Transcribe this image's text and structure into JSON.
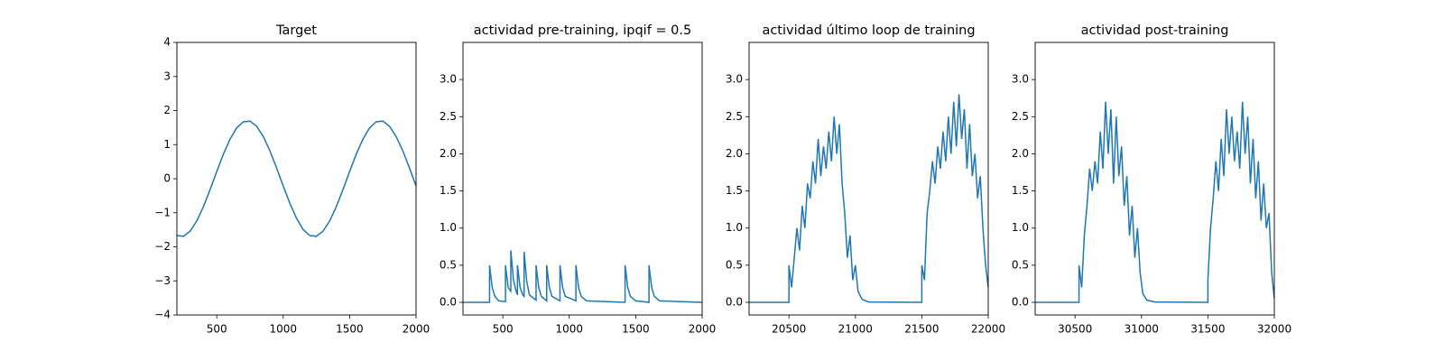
{
  "chart_data": [
    {
      "type": "line",
      "title": "Target",
      "color": "#1f77b4",
      "x": [
        200,
        250,
        300,
        350,
        400,
        450,
        500,
        550,
        600,
        650,
        700,
        750,
        800,
        850,
        900,
        950,
        1000,
        1050,
        1100,
        1150,
        1200,
        1250,
        1300,
        1350,
        1400,
        1450,
        1500,
        1550,
        1600,
        1650,
        1700,
        1750,
        1800,
        1850,
        1900,
        1950,
        2000
      ],
      "values": [
        -1.67,
        -1.69,
        -1.54,
        -1.24,
        -0.82,
        -0.32,
        0.21,
        0.72,
        1.16,
        1.49,
        1.67,
        1.69,
        1.54,
        1.24,
        0.82,
        0.32,
        -0.21,
        -0.72,
        -1.16,
        -1.49,
        -1.67,
        -1.69,
        -1.54,
        -1.24,
        -0.82,
        -0.32,
        0.21,
        0.72,
        1.16,
        1.49,
        1.67,
        1.69,
        1.54,
        1.24,
        0.82,
        0.32,
        -0.21
      ],
      "xlim": [
        200,
        2000
      ],
      "xticks": [
        500,
        1000,
        1500,
        2000
      ],
      "ylim": [
        -4,
        4
      ],
      "yticks": [
        {
          "value": -4,
          "label": "−4"
        },
        {
          "value": -3,
          "label": "−3"
        },
        {
          "value": -2,
          "label": "−2"
        },
        {
          "value": -1,
          "label": "−1"
        },
        0,
        1,
        2,
        3,
        4
      ]
    },
    {
      "type": "line",
      "title": "actividad pre-training, ipqif = 0.5",
      "color": "#1f77b4",
      "x": [
        200,
        400,
        400,
        420,
        440,
        470,
        520,
        520,
        540,
        560,
        560,
        580,
        600,
        610,
        610,
        630,
        650,
        660,
        660,
        680,
        700,
        750,
        750,
        770,
        790,
        830,
        830,
        850,
        870,
        930,
        930,
        950,
        970,
        1050,
        1050,
        1070,
        1090,
        1130,
        1420,
        1420,
        1440,
        1460,
        1500,
        1600,
        1600,
        1620,
        1640,
        1680,
        2000
      ],
      "values": [
        0,
        0,
        0.5,
        0.2,
        0.08,
        0.02,
        0.01,
        0.5,
        0.2,
        0.15,
        0.7,
        0.3,
        0.15,
        0.1,
        0.5,
        0.2,
        0.1,
        0.08,
        0.68,
        0.28,
        0.1,
        0.03,
        0.5,
        0.2,
        0.08,
        0.02,
        0.5,
        0.2,
        0.08,
        0.02,
        0.5,
        0.2,
        0.08,
        0.02,
        0.5,
        0.2,
        0.08,
        0.02,
        0,
        0.5,
        0.2,
        0.08,
        0.02,
        0,
        0.5,
        0.2,
        0.08,
        0.02,
        0
      ],
      "xlim": [
        200,
        2000
      ],
      "xticks": [
        500,
        1000,
        1500,
        2000
      ],
      "ylim": [
        -0.17,
        3.5
      ],
      "yticks": [
        {
          "value": 0,
          "label": "0.0"
        },
        {
          "value": 0.5,
          "label": "0.5"
        },
        {
          "value": 1,
          "label": "1.0"
        },
        {
          "value": 1.5,
          "label": "1.5"
        },
        {
          "value": 2,
          "label": "2.0"
        },
        {
          "value": 2.5,
          "label": "2.5"
        },
        {
          "value": 3,
          "label": "3.0"
        }
      ]
    },
    {
      "type": "line",
      "title": "actividad último loop de training",
      "color": "#1f77b4",
      "x": [
        20200,
        20500,
        20500,
        20520,
        20540,
        20560,
        20580,
        20600,
        20620,
        20640,
        20660,
        20680,
        20700,
        20720,
        20740,
        20760,
        20780,
        20800,
        20820,
        20840,
        20860,
        20880,
        20900,
        20920,
        20940,
        20960,
        20980,
        21000,
        21020,
        21050,
        21100,
        21500,
        21500,
        21520,
        21540,
        21560,
        21580,
        21600,
        21620,
        21640,
        21660,
        21680,
        21700,
        21720,
        21740,
        21760,
        21780,
        21800,
        21820,
        21840,
        21860,
        21880,
        21900,
        21920,
        21940,
        21960,
        21980,
        22000
      ],
      "values": [
        0,
        0,
        0.5,
        0.2,
        0.6,
        1.0,
        0.7,
        1.3,
        1.0,
        1.6,
        1.4,
        1.9,
        1.6,
        2.2,
        1.7,
        2.1,
        1.8,
        2.3,
        1.9,
        2.5,
        2.0,
        2.4,
        1.6,
        1.2,
        0.6,
        0.9,
        0.3,
        0.5,
        0.15,
        0.04,
        0.005,
        0,
        0.5,
        0.3,
        1.2,
        1.5,
        1.9,
        1.6,
        2.1,
        1.8,
        2.3,
        1.9,
        2.5,
        2.0,
        2.7,
        2.1,
        2.8,
        2.2,
        2.6,
        1.8,
        2.4,
        1.7,
        2.0,
        1.4,
        1.7,
        1.0,
        0.5,
        0.2
      ],
      "xlim": [
        20200,
        22000
      ],
      "xticks": [
        20500,
        21000,
        21500,
        22000
      ],
      "ylim": [
        -0.17,
        3.5
      ],
      "yticks": [
        {
          "value": 0,
          "label": "0.0"
        },
        {
          "value": 0.5,
          "label": "0.5"
        },
        {
          "value": 1,
          "label": "1.0"
        },
        {
          "value": 1.5,
          "label": "1.5"
        },
        {
          "value": 2,
          "label": "2.0"
        },
        {
          "value": 2.5,
          "label": "2.5"
        },
        {
          "value": 3,
          "label": "3.0"
        }
      ]
    },
    {
      "type": "line",
      "title": "actividad post-training",
      "color": "#1f77b4",
      "x": [
        30200,
        30530,
        30530,
        30550,
        30570,
        30590,
        30610,
        30630,
        30650,
        30670,
        30690,
        30710,
        30730,
        30750,
        30770,
        30790,
        30810,
        30830,
        30850,
        30870,
        30890,
        30910,
        30930,
        30950,
        30970,
        30990,
        31010,
        31040,
        31100,
        31500,
        31500,
        31520,
        31540,
        31560,
        31580,
        31600,
        31620,
        31640,
        31660,
        31680,
        31700,
        31720,
        31740,
        31760,
        31780,
        31800,
        31820,
        31840,
        31860,
        31880,
        31900,
        31920,
        31940,
        31960,
        31980,
        32000
      ],
      "values": [
        0,
        0,
        0.5,
        0.2,
        0.9,
        1.3,
        1.8,
        1.5,
        1.9,
        1.6,
        2.3,
        1.8,
        2.7,
        2.0,
        2.6,
        1.6,
        2.5,
        1.7,
        2.1,
        1.3,
        1.7,
        0.9,
        1.3,
        0.6,
        1.0,
        0.4,
        0.12,
        0.03,
        0.005,
        0,
        0.3,
        1.0,
        1.4,
        1.9,
        1.5,
        2.2,
        1.7,
        2.6,
        2.0,
        2.5,
        1.9,
        2.3,
        1.8,
        2.7,
        2.0,
        2.5,
        1.6,
        2.2,
        1.4,
        1.9,
        1.1,
        1.6,
        1.0,
        1.2,
        0.4,
        0.05
      ],
      "xlim": [
        30200,
        32000
      ],
      "xticks": [
        30500,
        31000,
        31500,
        32000
      ],
      "ylim": [
        -0.17,
        3.5
      ],
      "yticks": [
        {
          "value": 0,
          "label": "0.0"
        },
        {
          "value": 0.5,
          "label": "0.5"
        },
        {
          "value": 1,
          "label": "1.0"
        },
        {
          "value": 1.5,
          "label": "1.5"
        },
        {
          "value": 2,
          "label": "2.0"
        },
        {
          "value": 2.5,
          "label": "2.5"
        },
        {
          "value": 3,
          "label": "3.0"
        }
      ]
    }
  ]
}
